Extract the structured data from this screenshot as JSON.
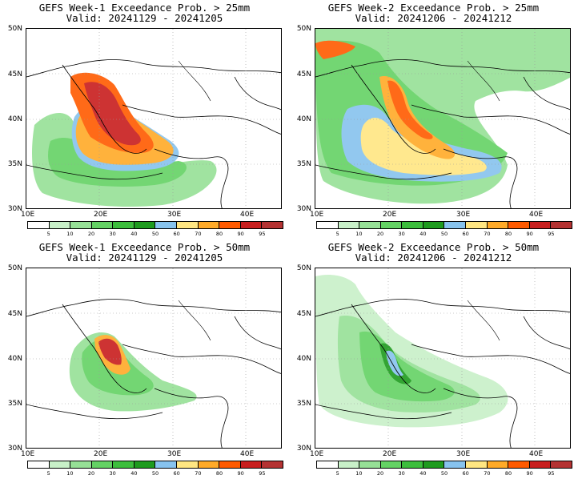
{
  "panels": [
    {
      "title": "GEFS Week-1 Exceedance Prob. > 25mm",
      "valid": "Valid: 20241129 - 20241205"
    },
    {
      "title": "GEFS Week-2 Exceedance Prob. > 25mm",
      "valid": "Valid: 20241206 - 20241212"
    },
    {
      "title": "GEFS Week-1 Exceedance Prob. > 50mm",
      "valid": "Valid: 20241129 - 20241205"
    },
    {
      "title": "GEFS Week-2 Exceedance Prob. > 50mm",
      "valid": "Valid: 20241206 - 20241212"
    }
  ],
  "lat_labels": [
    "50N",
    "45N",
    "40N",
    "35N",
    "30N"
  ],
  "lon_labels": [
    "10E",
    "20E",
    "30E",
    "40E"
  ],
  "colorbar": {
    "labels": [
      "5",
      "10",
      "20",
      "30",
      "40",
      "50",
      "60",
      "70",
      "80",
      "90",
      "95"
    ],
    "colors": [
      "#ffffff",
      "#c8f0c8",
      "#96e096",
      "#64d264",
      "#3cbe3c",
      "#1e9b1e",
      "#87c3ee",
      "#ffe682",
      "#ffaa28",
      "#ff5a00",
      "#c81e1e",
      "#b43232"
    ]
  }
}
